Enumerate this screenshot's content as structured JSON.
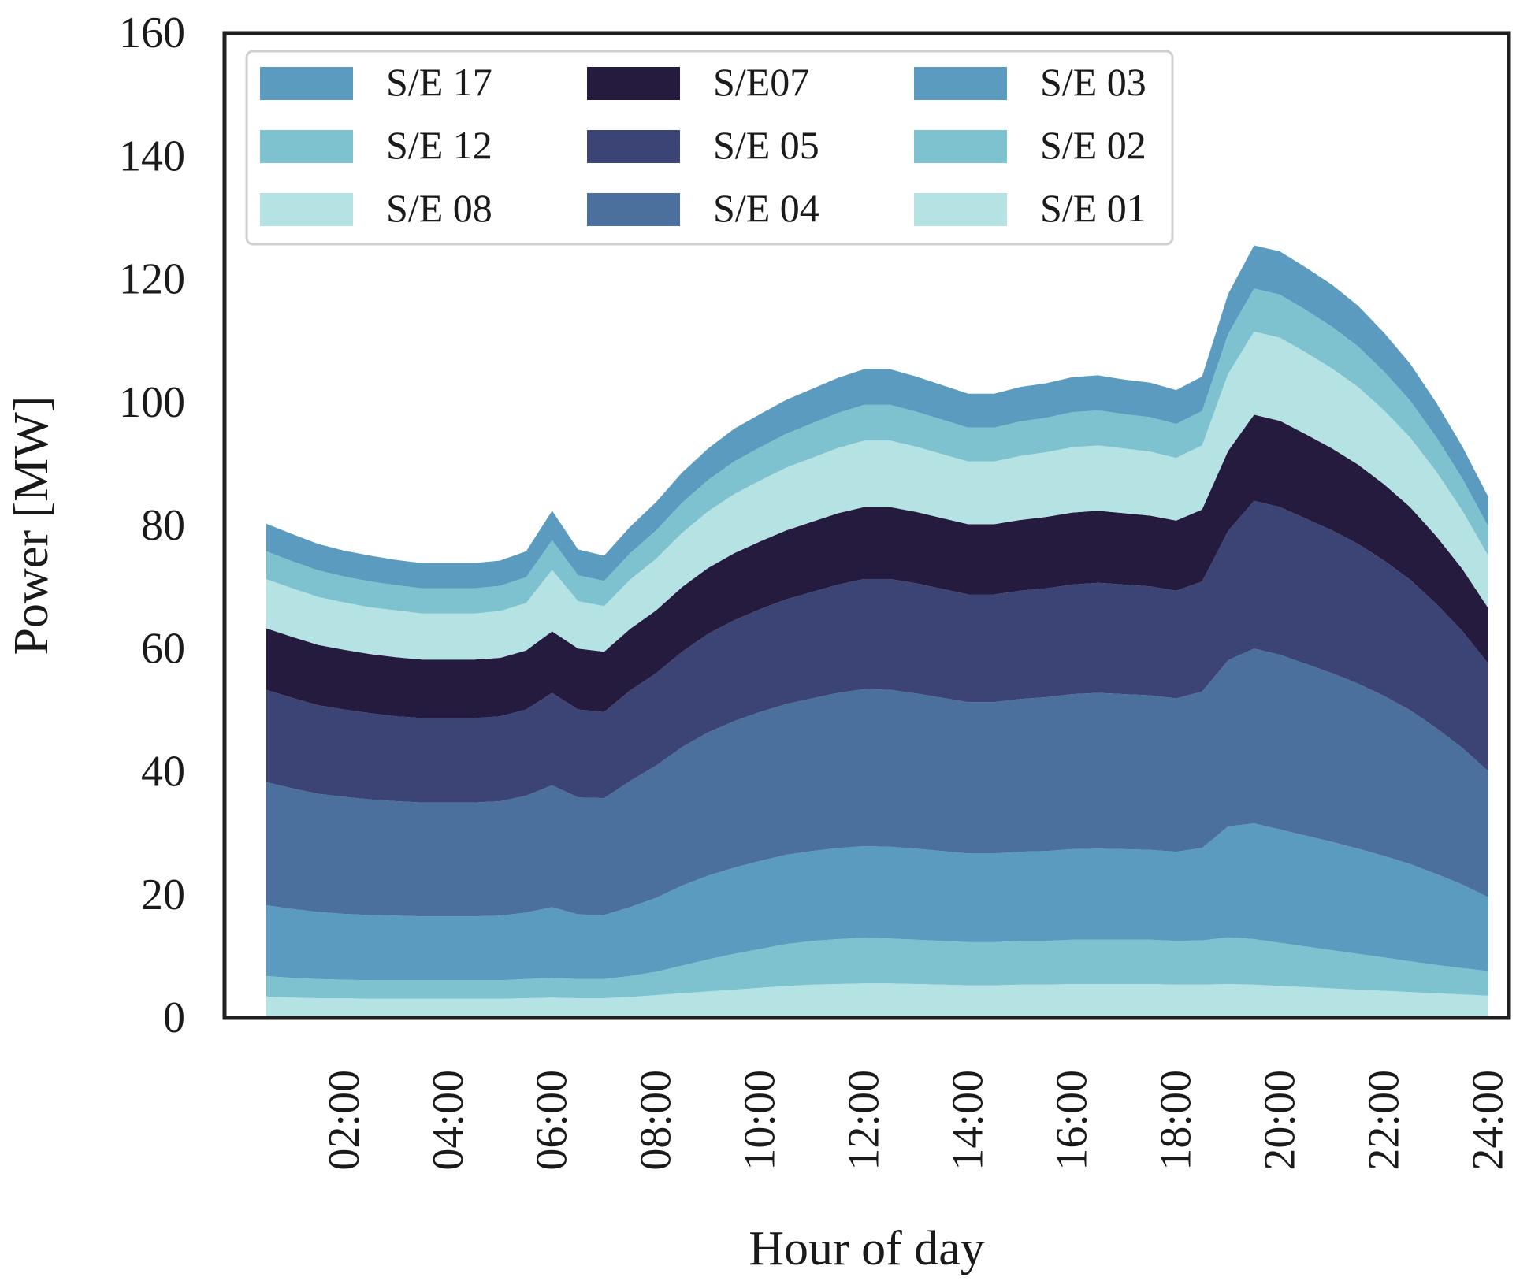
{
  "chart_data": {
    "type": "area",
    "stacked": true,
    "title": "",
    "xlabel": "Hour of day",
    "ylabel": "Power [MW]",
    "ylim": [
      0,
      160
    ],
    "xlim": [
      -0.3,
      24.4
    ],
    "yticks": [
      0,
      20,
      40,
      60,
      80,
      100,
      120,
      140,
      160
    ],
    "xticks": [
      {
        "value": 2,
        "label": "02:00"
      },
      {
        "value": 4,
        "label": "04:00"
      },
      {
        "value": 6,
        "label": "06:00"
      },
      {
        "value": 8,
        "label": "08:00"
      },
      {
        "value": 10,
        "label": "10:00"
      },
      {
        "value": 12,
        "label": "12:00"
      },
      {
        "value": 14,
        "label": "14:00"
      },
      {
        "value": 16,
        "label": "16:00"
      },
      {
        "value": 18,
        "label": "18:00"
      },
      {
        "value": 20,
        "label": "20:00"
      },
      {
        "value": 22,
        "label": "22:00"
      },
      {
        "value": 24,
        "label": "24:00"
      }
    ],
    "grid": false,
    "legend_position": "top-left",
    "legend_order": [
      "S/E 17",
      "S/E07",
      "S/E 03",
      "S/E 12",
      "S/E 05",
      "S/E 02",
      "S/E 08",
      "S/E 04",
      "S/E 01"
    ],
    "x": [
      0.5,
      1.0,
      1.5,
      2.0,
      2.5,
      3.0,
      3.5,
      4.0,
      4.5,
      5.0,
      5.5,
      6.0,
      6.5,
      7.0,
      7.5,
      8.0,
      8.5,
      9.0,
      9.5,
      10.0,
      10.5,
      11.0,
      11.5,
      12.0,
      12.5,
      13.0,
      13.5,
      14.0,
      14.5,
      15.0,
      15.5,
      16.0,
      16.5,
      17.0,
      17.5,
      18.0,
      18.5,
      19.0,
      19.5,
      20.0,
      20.5,
      21.0,
      21.5,
      22.0,
      22.5,
      23.0,
      23.5,
      24.0
    ],
    "series": [
      {
        "name": "S/E 01",
        "color": "#b5e3e4",
        "values": [
          3.5,
          3.3,
          3.2,
          3.2,
          3.1,
          3.1,
          3.1,
          3.1,
          3.1,
          3.1,
          3.2,
          3.3,
          3.2,
          3.2,
          3.4,
          3.7,
          4.0,
          4.3,
          4.6,
          4.9,
          5.2,
          5.4,
          5.5,
          5.6,
          5.6,
          5.5,
          5.4,
          5.3,
          5.3,
          5.4,
          5.4,
          5.5,
          5.5,
          5.5,
          5.5,
          5.4,
          5.4,
          5.5,
          5.4,
          5.2,
          5.0,
          4.8,
          4.6,
          4.4,
          4.2,
          4.0,
          3.8,
          3.6
        ]
      },
      {
        "name": "S/E 02",
        "color": "#7ec2d0",
        "values": [
          3.3,
          3.2,
          3.1,
          3.0,
          3.0,
          3.0,
          3.0,
          3.0,
          3.0,
          3.0,
          3.1,
          3.2,
          3.1,
          3.1,
          3.4,
          3.8,
          4.5,
          5.2,
          5.8,
          6.3,
          6.8,
          7.1,
          7.3,
          7.4,
          7.3,
          7.2,
          7.1,
          7.0,
          7.0,
          7.1,
          7.1,
          7.2,
          7.2,
          7.2,
          7.2,
          7.1,
          7.2,
          7.6,
          7.4,
          7.0,
          6.6,
          6.2,
          5.8,
          5.4,
          5.0,
          4.6,
          4.3,
          4.0
        ]
      },
      {
        "name": "S/E 03",
        "color": "#5b9bbf",
        "values": [
          11.5,
          11.2,
          10.9,
          10.7,
          10.6,
          10.5,
          10.4,
          10.4,
          10.4,
          10.5,
          10.8,
          11.5,
          10.5,
          10.4,
          11.2,
          12.0,
          13.0,
          13.6,
          14.0,
          14.3,
          14.5,
          14.6,
          14.8,
          14.9,
          14.9,
          14.8,
          14.6,
          14.4,
          14.4,
          14.5,
          14.6,
          14.7,
          14.8,
          14.7,
          14.6,
          14.5,
          15.0,
          18.0,
          18.8,
          18.4,
          18.0,
          17.6,
          17.1,
          16.5,
          15.8,
          14.8,
          13.6,
          12.0
        ]
      },
      {
        "name": "S/E 04",
        "color": "#4b709e",
        "values": [
          20.0,
          19.6,
          19.2,
          19.0,
          18.8,
          18.6,
          18.5,
          18.5,
          18.5,
          18.6,
          19.0,
          19.8,
          19.0,
          19.0,
          20.5,
          21.5,
          22.5,
          23.3,
          23.8,
          24.2,
          24.5,
          24.8,
          25.2,
          25.5,
          25.5,
          25.2,
          24.9,
          24.6,
          24.6,
          24.8,
          25.0,
          25.2,
          25.3,
          25.2,
          25.1,
          24.9,
          25.4,
          27.0,
          28.4,
          28.4,
          27.9,
          27.4,
          26.8,
          26.0,
          25.0,
          23.7,
          22.2,
          20.5
        ]
      },
      {
        "name": "S/E 05",
        "color": "#3c4475",
        "values": [
          15.0,
          14.7,
          14.4,
          14.2,
          14.0,
          13.8,
          13.7,
          13.7,
          13.7,
          13.8,
          14.0,
          15.0,
          14.3,
          14.0,
          14.7,
          15.0,
          15.5,
          16.0,
          16.4,
          16.7,
          17.0,
          17.3,
          17.6,
          17.9,
          18.0,
          17.9,
          17.7,
          17.5,
          17.5,
          17.6,
          17.7,
          17.8,
          17.9,
          17.8,
          17.7,
          17.5,
          17.9,
          21.0,
          24.0,
          24.0,
          23.6,
          23.2,
          22.7,
          22.0,
          21.2,
          20.2,
          19.0,
          17.5
        ]
      },
      {
        "name": "S/E07",
        "color": "#251b3e",
        "values": [
          10.0,
          9.9,
          9.8,
          9.7,
          9.6,
          9.6,
          9.5,
          9.5,
          9.5,
          9.5,
          9.6,
          10.0,
          9.9,
          9.8,
          10.0,
          10.2,
          10.5,
          10.7,
          10.9,
          11.0,
          11.2,
          11.4,
          11.6,
          11.7,
          11.7,
          11.6,
          11.5,
          11.4,
          11.4,
          11.5,
          11.6,
          11.7,
          11.7,
          11.6,
          11.5,
          11.4,
          11.7,
          13.0,
          14.0,
          14.0,
          13.7,
          13.3,
          12.9,
          12.4,
          11.8,
          11.0,
          10.1,
          9.0
        ]
      },
      {
        "name": "S/E 08",
        "color": "#b5e3e4",
        "values": [
          8.0,
          7.9,
          7.8,
          7.7,
          7.6,
          7.6,
          7.5,
          7.5,
          7.5,
          7.6,
          7.7,
          10.0,
          7.7,
          7.4,
          8.0,
          8.4,
          8.8,
          9.2,
          9.6,
          9.9,
          10.2,
          10.4,
          10.6,
          10.8,
          10.8,
          10.6,
          10.4,
          10.2,
          10.2,
          10.4,
          10.5,
          10.6,
          10.6,
          10.5,
          10.4,
          10.2,
          10.4,
          12.5,
          13.5,
          13.5,
          13.3,
          13.0,
          12.6,
          12.0,
          11.3,
          10.5,
          9.5,
          8.5
        ]
      },
      {
        "name": "S/E 12",
        "color": "#7ec2d0",
        "values": [
          4.5,
          4.4,
          4.3,
          4.2,
          4.2,
          4.1,
          4.1,
          4.1,
          4.1,
          4.1,
          4.2,
          4.8,
          4.2,
          4.1,
          4.3,
          4.6,
          4.9,
          5.1,
          5.3,
          5.4,
          5.5,
          5.6,
          5.7,
          5.8,
          5.8,
          5.7,
          5.6,
          5.5,
          5.5,
          5.6,
          5.6,
          5.7,
          5.7,
          5.6,
          5.6,
          5.5,
          5.6,
          6.5,
          7.0,
          7.0,
          6.9,
          6.8,
          6.6,
          6.3,
          6.0,
          5.6,
          5.2,
          4.8
        ]
      },
      {
        "name": "S/E 17",
        "color": "#5b9bbf",
        "values": [
          4.5,
          4.4,
          4.3,
          4.2,
          4.2,
          4.1,
          4.1,
          4.1,
          4.1,
          4.1,
          4.2,
          4.8,
          4.2,
          4.1,
          4.3,
          4.6,
          4.9,
          5.1,
          5.3,
          5.4,
          5.5,
          5.6,
          5.7,
          5.8,
          5.8,
          5.7,
          5.6,
          5.5,
          5.5,
          5.6,
          5.6,
          5.7,
          5.7,
          5.6,
          5.6,
          5.5,
          5.6,
          6.5,
          7.0,
          7.0,
          6.9,
          6.8,
          6.6,
          6.3,
          6.0,
          5.6,
          5.2,
          4.8
        ]
      }
    ]
  }
}
